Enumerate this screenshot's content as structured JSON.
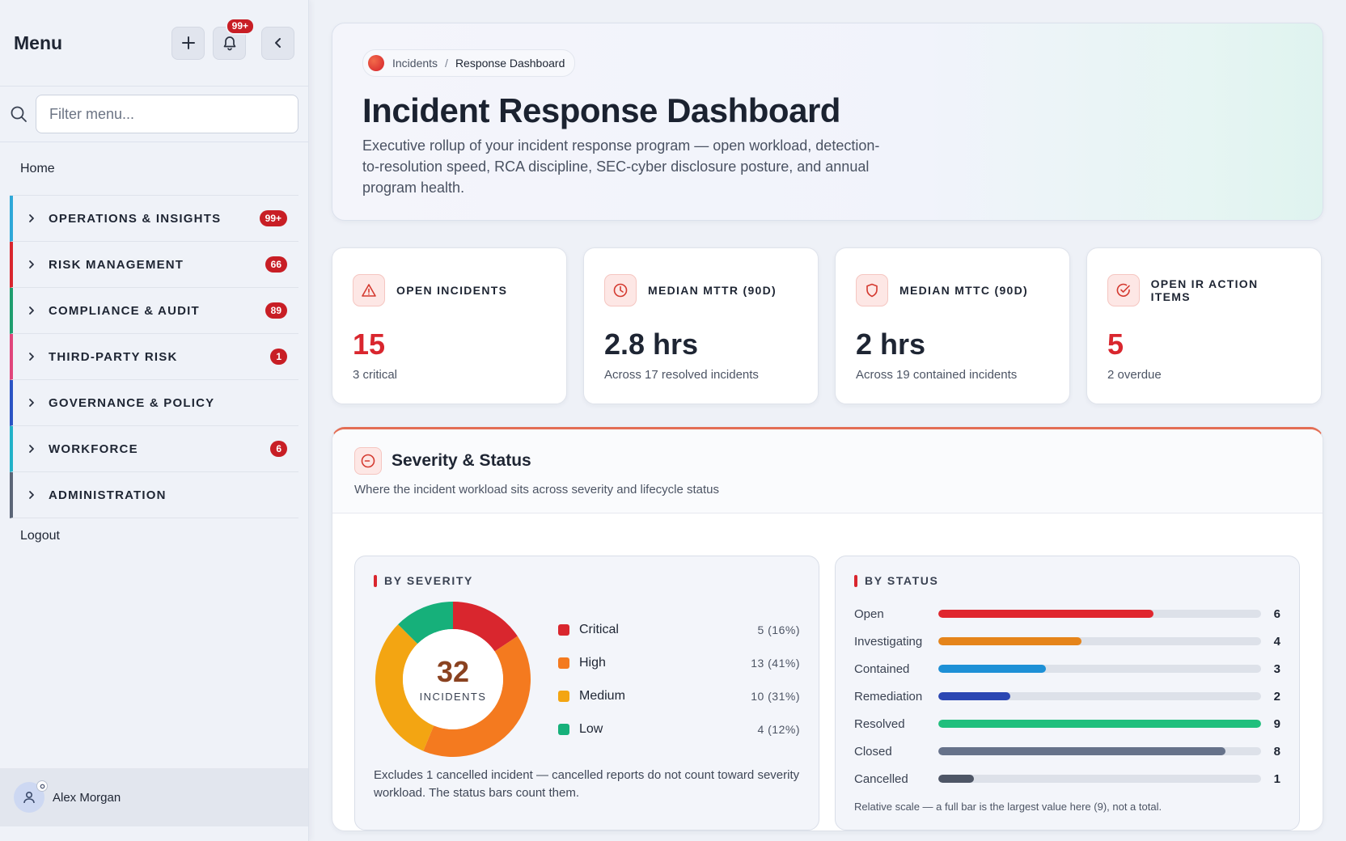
{
  "sidebar": {
    "title": "Menu",
    "notification_badge": "99+",
    "search_placeholder": "Filter menu...",
    "home": "Home",
    "groups": [
      {
        "label": "OPERATIONS & INSIGHTS",
        "count": "99+",
        "accent": "#2fa8d8"
      },
      {
        "label": "RISK MANAGEMENT",
        "count": "66",
        "accent": "#d9262e"
      },
      {
        "label": "COMPLIANCE & AUDIT",
        "count": "89",
        "accent": "#1f9d6e"
      },
      {
        "label": "THIRD-PARTY RISK",
        "count": "1",
        "accent": "#e0457b"
      },
      {
        "label": "GOVERNANCE & POLICY",
        "count": "",
        "accent": "#2b54c4"
      },
      {
        "label": "WORKFORCE",
        "count": "6",
        "accent": "#22b2c8"
      },
      {
        "label": "ADMINISTRATION",
        "count": "",
        "accent": "#5b6577"
      }
    ],
    "logout": "Logout",
    "user_name": "Alex Morgan"
  },
  "hero": {
    "breadcrumb_parent": "Incidents",
    "breadcrumb_separator": "/",
    "breadcrumb_current": "Response Dashboard",
    "title": "Incident Response Dashboard",
    "description": "Executive rollup of your incident response program — open workload, detection-to-resolution speed, RCA discipline, SEC-cyber disclosure posture, and annual program health."
  },
  "kpis": [
    {
      "label": "OPEN INCIDENTS",
      "value": "15",
      "sub": "3 critical",
      "icon": "warning-triangle-icon",
      "value_color": "red"
    },
    {
      "label": "MEDIAN MTTR (90D)",
      "value": "2.8 hrs",
      "sub": "Across 17 resolved incidents",
      "icon": "clock-icon",
      "value_color": "dark"
    },
    {
      "label": "MEDIAN MTTC (90D)",
      "value": "2 hrs",
      "sub": "Across 19 contained incidents",
      "icon": "shield-icon",
      "value_color": "dark"
    },
    {
      "label": "OPEN IR ACTION ITEMS",
      "value": "5",
      "sub": "2 overdue",
      "icon": "check-circle-icon",
      "value_color": "red"
    }
  ],
  "panel": {
    "title": "Severity & Status",
    "subtitle": "Where the incident workload sits across severity and lifecycle status",
    "severity": {
      "title": "BY SEVERITY",
      "total": "32",
      "total_caption": "INCIDENTS",
      "items": [
        {
          "name": "Critical",
          "value": 5,
          "label": "5 (16%)",
          "color": "#d9262e"
        },
        {
          "name": "High",
          "value": 13,
          "label": "13 (41%)",
          "color": "#f47a1f"
        },
        {
          "name": "Medium",
          "value": 10,
          "label": "10 (31%)",
          "color": "#f3a512"
        },
        {
          "name": "Low",
          "value": 4,
          "label": "4 (12%)",
          "color": "#16b07a"
        }
      ],
      "note": "Excludes 1 cancelled incident — cancelled reports do not count toward severity workload. The status bars count them."
    },
    "status": {
      "title": "BY STATUS",
      "max": 9,
      "items": [
        {
          "name": "Open",
          "value": 6,
          "count": "6",
          "color": "#e0262e"
        },
        {
          "name": "Investigating",
          "value": 4,
          "count": "4",
          "color": "#e5841a"
        },
        {
          "name": "Contained",
          "value": 3,
          "count": "3",
          "color": "#1d90d6"
        },
        {
          "name": "Remediation",
          "value": 2,
          "count": "2",
          "color": "#2b47b3"
        },
        {
          "name": "Resolved",
          "value": 9,
          "count": "9",
          "color": "#20bf7d"
        },
        {
          "name": "Closed",
          "value": 8,
          "count": "8",
          "color": "#66728a"
        },
        {
          "name": "Cancelled",
          "value": 1,
          "count": "1",
          "color": "#4e5666"
        }
      ],
      "note": "Relative scale — a full bar is the largest value here (9), not a total."
    }
  }
}
